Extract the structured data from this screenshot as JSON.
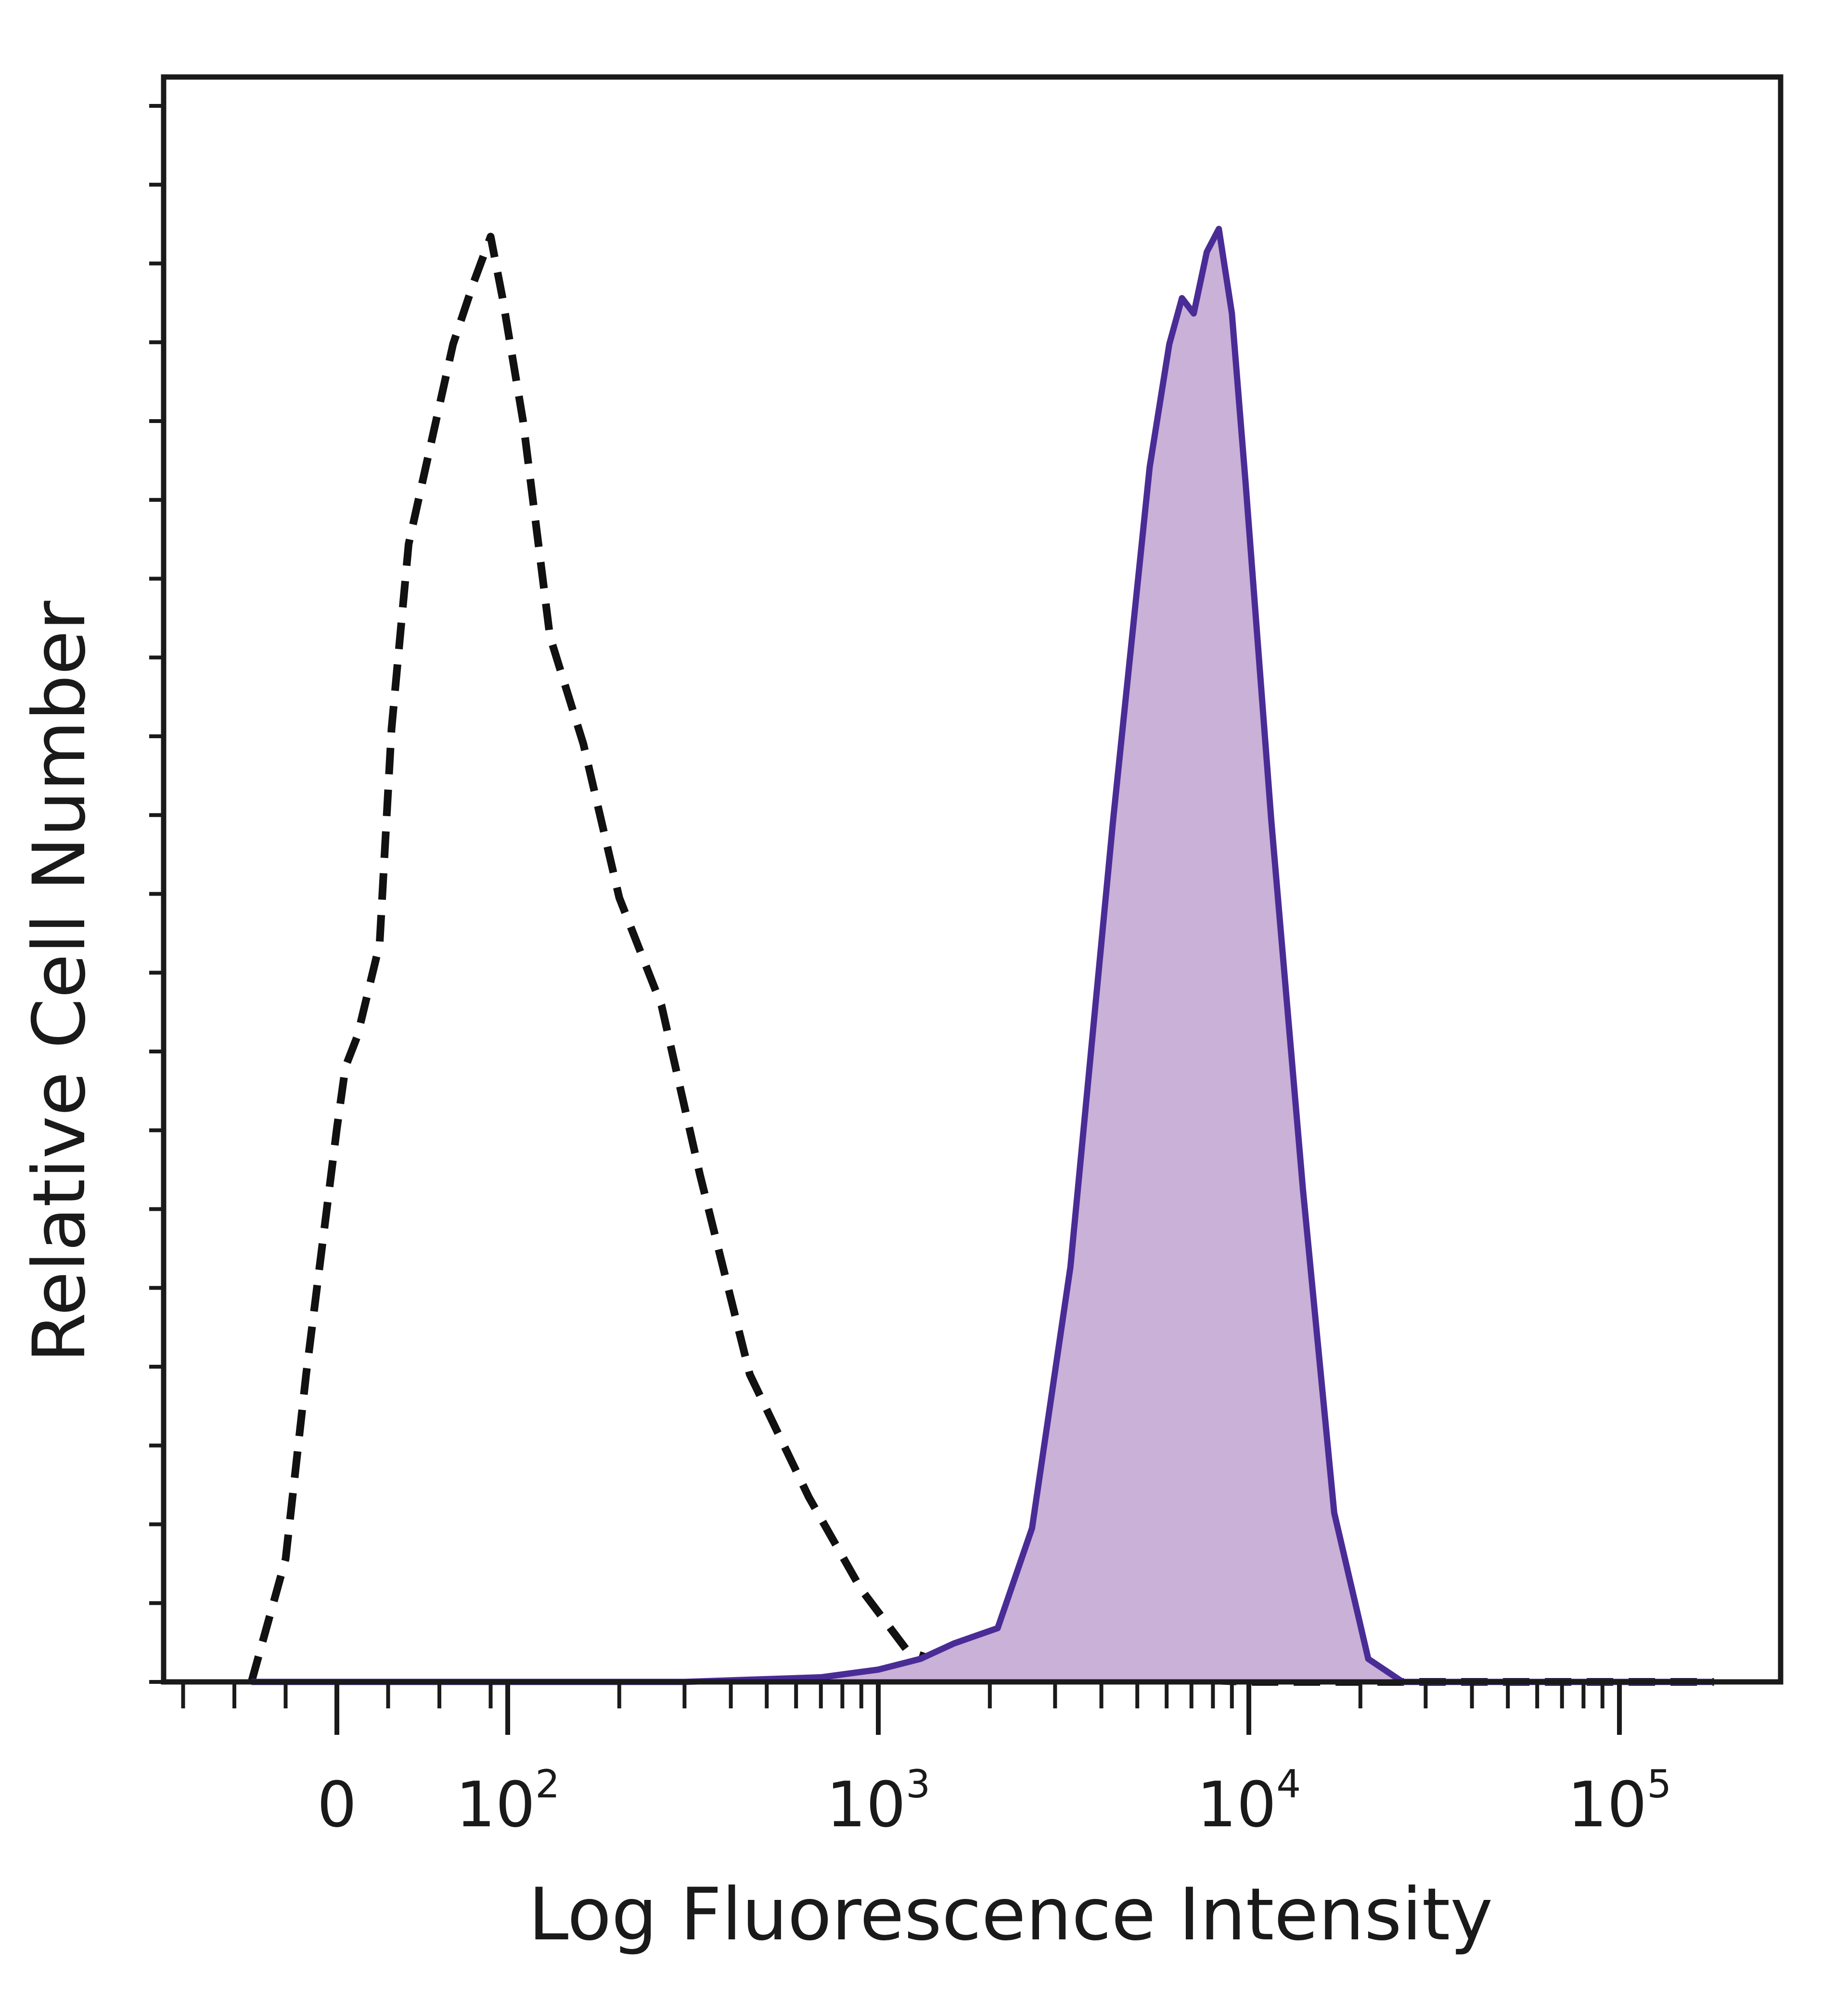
{
  "chart_data": {
    "type": "area",
    "xlabel": "Log Fluorescence Intensity",
    "ylabel": "Relative Cell Number",
    "x_scale": "biexponential",
    "xlim": [
      -60,
      200000
    ],
    "ylim": [
      0,
      100
    ],
    "grid": false,
    "x_ticks": [
      {
        "value": 0,
        "base": "0",
        "exp": ""
      },
      {
        "value": 100,
        "base": "10",
        "exp": "2"
      },
      {
        "value": 1000,
        "base": "10",
        "exp": "3"
      },
      {
        "value": 10000,
        "base": "10",
        "exp": "4"
      },
      {
        "value": 100000,
        "base": "10",
        "exp": "5"
      }
    ],
    "series": [
      {
        "style": "dashed",
        "color": "#111111",
        "fill": "none",
        "points": [
          [
            -50,
            0
          ],
          [
            -30,
            8
          ],
          [
            -18,
            20
          ],
          [
            0,
            36
          ],
          [
            5,
            40
          ],
          [
            12,
            42
          ],
          [
            25,
            48
          ],
          [
            32,
            62
          ],
          [
            42,
            74
          ],
          [
            52,
            79
          ],
          [
            58,
            82
          ],
          [
            68,
            87
          ],
          [
            80,
            91
          ],
          [
            90,
            94
          ],
          [
            97,
            90
          ],
          [
            110,
            82
          ],
          [
            130,
            68
          ],
          [
            160,
            61
          ],
          [
            200,
            51
          ],
          [
            260,
            44
          ],
          [
            330,
            33
          ],
          [
            450,
            20
          ],
          [
            650,
            12
          ],
          [
            900,
            6
          ],
          [
            1200,
            2
          ],
          [
            1600,
            1
          ],
          [
            2500,
            0.5
          ],
          [
            5000,
            0.3
          ],
          [
            10000,
            0
          ],
          [
            100000,
            0
          ],
          [
            180000,
            0
          ]
        ]
      },
      {
        "style": "solid",
        "color": "#4a2c96",
        "fill": "#c9b1d7",
        "points": [
          [
            -50,
            0
          ],
          [
            300,
            0
          ],
          [
            700,
            0.3
          ],
          [
            1000,
            0.8
          ],
          [
            1300,
            1.5
          ],
          [
            1600,
            2.5
          ],
          [
            2100,
            3.5
          ],
          [
            2600,
            10
          ],
          [
            3300,
            27
          ],
          [
            4300,
            56
          ],
          [
            5400,
            79
          ],
          [
            6100,
            87
          ],
          [
            6600,
            90
          ],
          [
            7100,
            89
          ],
          [
            7700,
            93
          ],
          [
            8300,
            94.5
          ],
          [
            9000,
            89
          ],
          [
            9800,
            78
          ],
          [
            11500,
            56
          ],
          [
            14000,
            32
          ],
          [
            17000,
            11
          ],
          [
            21000,
            1.5
          ],
          [
            26000,
            0
          ],
          [
            180000,
            0
          ]
        ]
      }
    ]
  }
}
